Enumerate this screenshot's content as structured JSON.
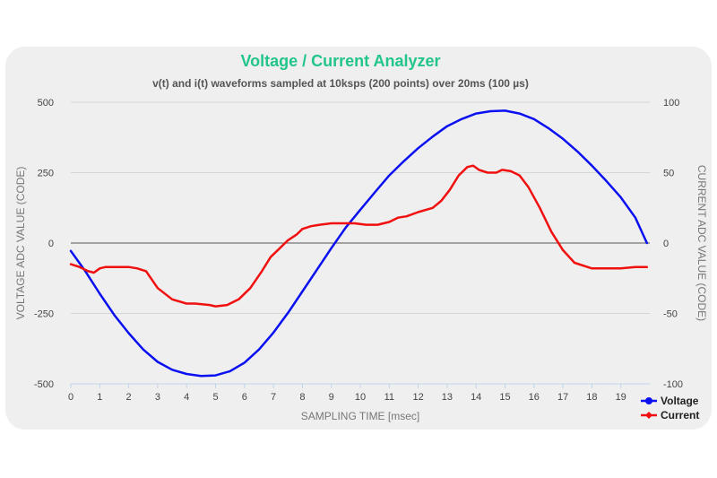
{
  "chart_data": {
    "type": "line",
    "title": "Voltage / Current Analyzer",
    "subtitle": "v(t) and i(t) waveforms sampled at 10ksps (200 points) over 20ms (100 µs)",
    "xlabel": "SAMPLING TIME [msec]",
    "ylabel_left": "VOLTAGE ADC VALUE (CODE)",
    "ylabel_right": "CURRENT ADC VALUE (CODE)",
    "xlim": [
      0,
      20
    ],
    "ylim_left": [
      -500,
      500
    ],
    "ylim_right": [
      -100,
      100
    ],
    "x_ticks": [
      "0",
      "1",
      "2",
      "3",
      "4",
      "5",
      "6",
      "7",
      "8",
      "9",
      "10",
      "11",
      "12",
      "13",
      "14",
      "15",
      "16",
      "17",
      "18",
      "19"
    ],
    "y_ticks_left": [
      "500",
      "250",
      "0",
      "-250",
      "-500"
    ],
    "y_ticks_right": [
      "100",
      "50",
      "0",
      "-50",
      "-100"
    ],
    "grid": true,
    "legend_position": "bottom-right",
    "series": [
      {
        "name": "Voltage",
        "axis": "left",
        "color": "#0a10f0",
        "x": [
          0,
          0.5,
          1,
          1.5,
          2,
          2.5,
          3,
          3.5,
          4,
          4.5,
          5,
          5.5,
          6,
          6.5,
          7,
          7.5,
          8,
          8.5,
          9,
          9.5,
          10,
          10.5,
          11,
          11.5,
          12,
          12.5,
          13,
          13.5,
          14,
          14.5,
          15,
          15.5,
          16,
          16.5,
          17,
          17.5,
          18,
          18.5,
          19,
          19.5,
          19.9
        ],
        "values": [
          -28,
          -100,
          -180,
          -255,
          -320,
          -378,
          -422,
          -450,
          -465,
          -472,
          -470,
          -455,
          -425,
          -378,
          -318,
          -248,
          -172,
          -95,
          -18,
          55,
          118,
          180,
          240,
          290,
          337,
          378,
          415,
          440,
          460,
          468,
          470,
          460,
          440,
          408,
          370,
          325,
          275,
          220,
          162,
          90,
          0
        ]
      },
      {
        "name": "Current",
        "axis": "right",
        "color": "#f01010",
        "x": [
          0,
          0.3,
          0.6,
          0.8,
          1,
          1.2,
          1.5,
          2,
          2.3,
          2.6,
          3,
          3.5,
          4,
          4.3,
          4.8,
          5,
          5.4,
          5.8,
          6.2,
          6.6,
          6.9,
          7.2,
          7.5,
          7.8,
          8,
          8.3,
          8.6,
          9,
          9.4,
          9.8,
          10.2,
          10.6,
          11,
          11.3,
          11.6,
          12,
          12.5,
          12.8,
          13.1,
          13.4,
          13.7,
          13.9,
          14.1,
          14.4,
          14.7,
          14.9,
          15.2,
          15.5,
          15.8,
          16.2,
          16.6,
          17,
          17.4,
          18,
          18.5,
          19,
          19.5,
          19.9
        ],
        "values": [
          -15,
          -17,
          -20,
          -21,
          -18,
          -17,
          -17,
          -17,
          -18,
          -20,
          -32,
          -40,
          -43,
          -43,
          -44,
          -45,
          -44,
          -40,
          -32,
          -20,
          -10,
          -4,
          2,
          6,
          10,
          12,
          13,
          14,
          14,
          14,
          13,
          13,
          15,
          18,
          19,
          22,
          25,
          30,
          38,
          48,
          54,
          55,
          52,
          50,
          50,
          52,
          51,
          48,
          40,
          25,
          8,
          -5,
          -14,
          -18,
          -18,
          -18,
          -17,
          -17
        ]
      }
    ]
  }
}
